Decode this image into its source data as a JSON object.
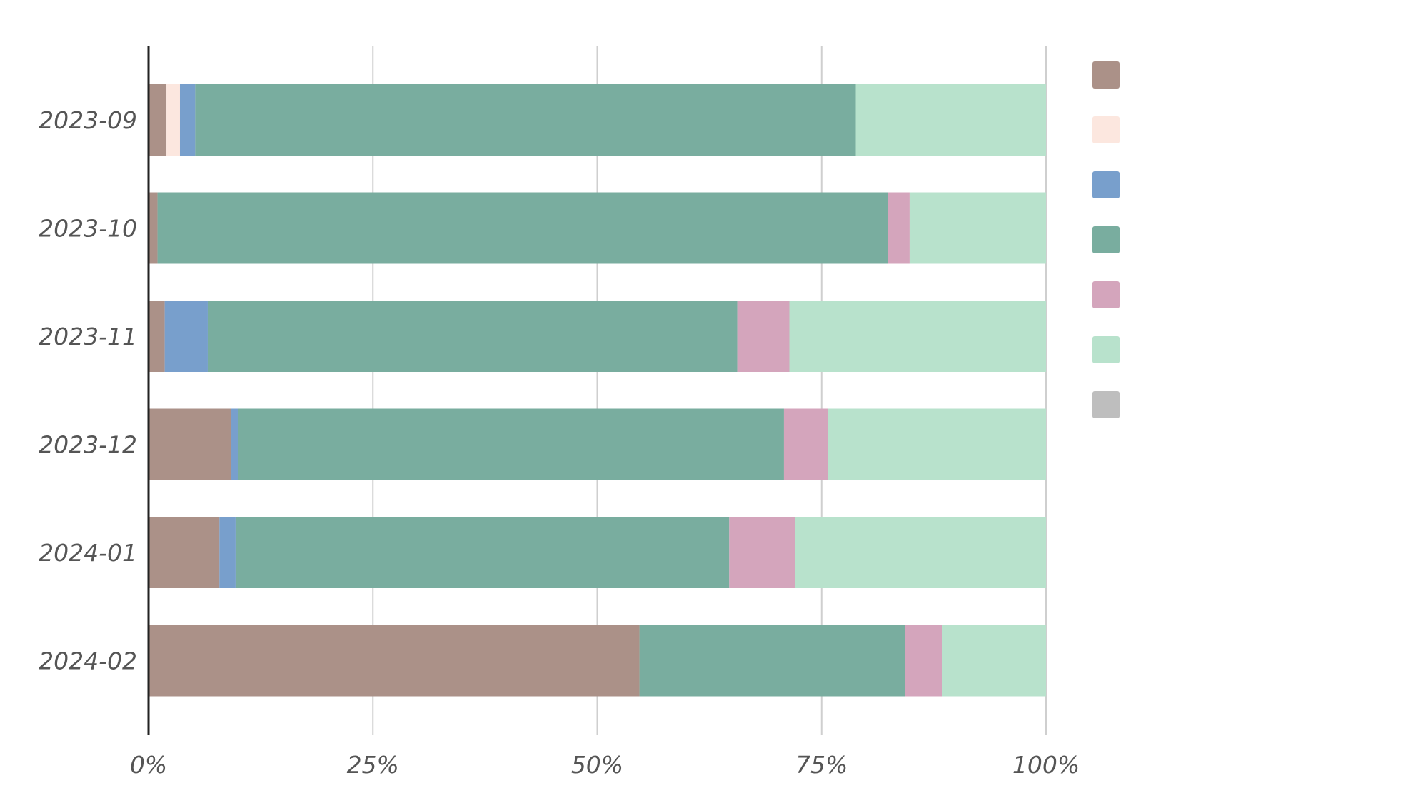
{
  "chart_data": {
    "type": "bar",
    "orientation": "horizontal",
    "stacked": "percent",
    "categories": [
      "2023-09",
      "2023-10",
      "2023-11",
      "2023-12",
      "2024-01",
      "2024-02"
    ],
    "xlim": [
      0,
      100
    ],
    "xticks": [
      "0%",
      "25%",
      "50%",
      "75%",
      "100%"
    ],
    "grid": true,
    "legend": "right",
    "series": [
      {
        "color": "#AB9188",
        "values": [
          2.0,
          1.0,
          1.8,
          9.2,
          7.9,
          54.7
        ]
      },
      {
        "color": "#FCE7DF",
        "values": [
          1.5,
          0,
          0,
          0,
          0,
          0
        ]
      },
      {
        "color": "#789FCC",
        "values": [
          1.7,
          0,
          4.8,
          0.8,
          1.8,
          0
        ]
      },
      {
        "color": "#79AD9F",
        "values": [
          73.6,
          81.4,
          59.0,
          60.8,
          55.0,
          29.6
        ]
      },
      {
        "color": "#D4A5BC",
        "values": [
          0,
          2.4,
          5.8,
          4.9,
          7.3,
          4.1
        ]
      },
      {
        "color": "#B8E2CC",
        "values": [
          21.2,
          15.2,
          28.6,
          24.3,
          28.0,
          11.6
        ]
      },
      {
        "color": "#BEBEBE",
        "values": [
          0,
          0,
          0,
          0,
          0,
          0
        ]
      }
    ]
  }
}
